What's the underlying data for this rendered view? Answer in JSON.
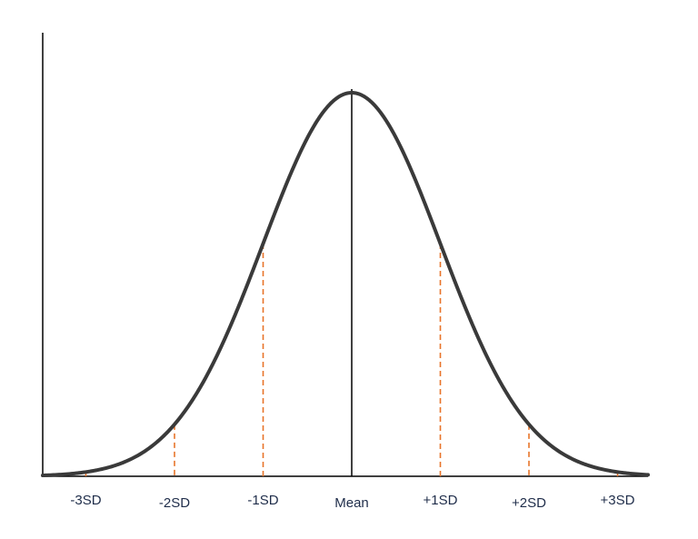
{
  "chart_data": {
    "type": "line",
    "title": "",
    "xlabel": "",
    "ylabel": "",
    "xlim": [
      -3.65,
      3.5
    ],
    "ylim": [
      0,
      0.42
    ],
    "grid": false,
    "legend": "none",
    "curve": {
      "distribution": "normal",
      "mean": 0,
      "sd": 1
    },
    "markers": [
      {
        "x": -3,
        "label": "-3SD"
      },
      {
        "x": -2,
        "label": "-2SD"
      },
      {
        "x": -1,
        "label": "-1SD"
      },
      {
        "x": 0,
        "label": "Mean"
      },
      {
        "x": 1,
        "label": "+1SD"
      },
      {
        "x": 2,
        "label": "+2SD"
      },
      {
        "x": 3,
        "label": "+3SD"
      }
    ],
    "colors": {
      "curve": "#3a3a3a",
      "sd_lines": "#e8742a",
      "mean_line": "#000000",
      "axes": "#000000",
      "labels": "#1f2d4a"
    }
  }
}
